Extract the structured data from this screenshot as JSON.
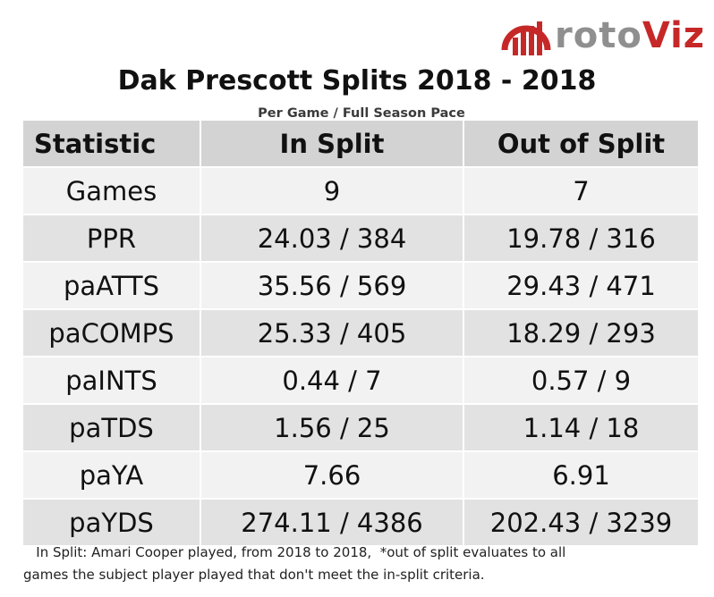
{
  "logo": {
    "text_main": "roto",
    "text_accent": "Viz",
    "icon": "bar-chart-logo-icon",
    "colors": {
      "main": "#8f8f8f",
      "accent": "#c62828"
    }
  },
  "title": "Dak Prescott Splits 2018 - 2018",
  "subtitle": "Per Game / Full Season Pace",
  "table": {
    "headers": [
      "Statistic",
      "In Split",
      "Out of Split"
    ],
    "rows": [
      {
        "stat": "Games",
        "in_split": "9",
        "out_split": "7"
      },
      {
        "stat": "PPR",
        "in_split": "24.03 / 384",
        "out_split": "19.78 / 316"
      },
      {
        "stat": "paATTS",
        "in_split": "35.56 / 569",
        "out_split": "29.43 / 471"
      },
      {
        "stat": "paCOMPS",
        "in_split": "25.33 / 405",
        "out_split": "18.29 / 293"
      },
      {
        "stat": "paINTS",
        "in_split": "0.44 / 7",
        "out_split": "0.57 / 9"
      },
      {
        "stat": "paTDS",
        "in_split": "1.56 / 25",
        "out_split": "1.14 / 18"
      },
      {
        "stat": "paYA",
        "in_split": "7.66",
        "out_split": "6.91"
      },
      {
        "stat": "paYDS",
        "in_split": "274.11 / 4386",
        "out_split": "202.43 / 3239"
      }
    ],
    "colors": {
      "header_bg": "#d3d3d3",
      "row_light": "#f2f2f2",
      "row_dark": "#e2e2e2"
    }
  },
  "footnote": {
    "line1": "   In Split: Amari Cooper played, from 2018 to 2018,  *out of split evaluates to all",
    "line2": "games the subject player played that don't meet the in-split criteria."
  }
}
